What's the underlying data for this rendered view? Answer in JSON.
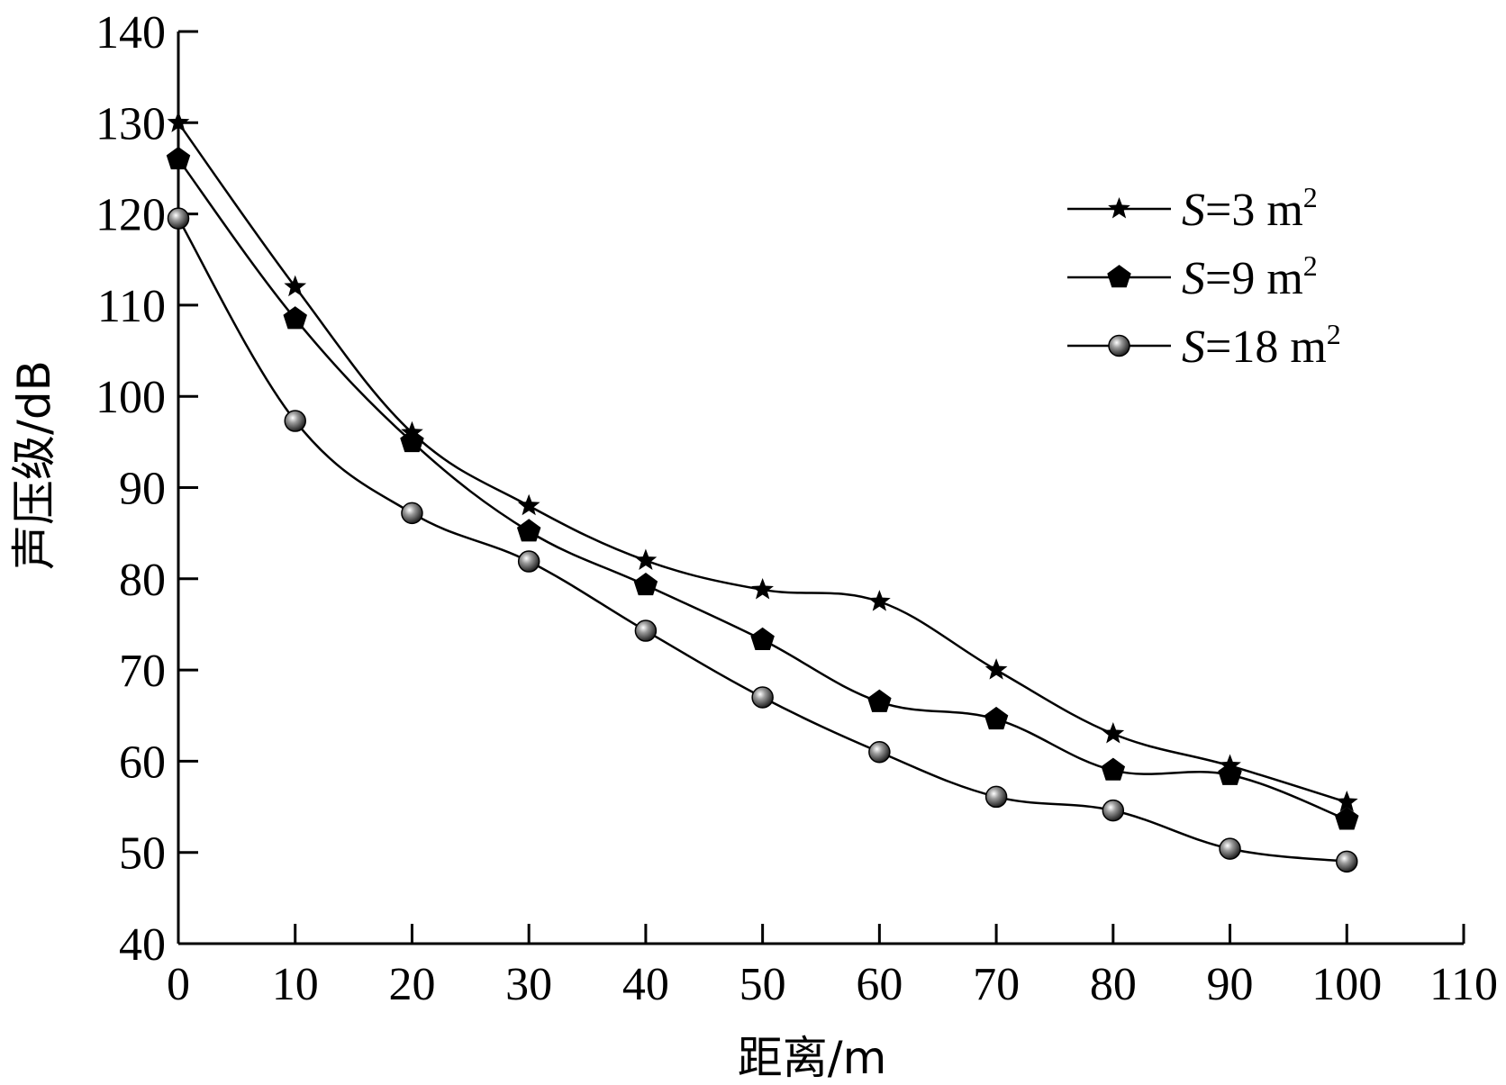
{
  "chart_data": {
    "type": "line",
    "xlabel": "距离/m",
    "ylabel": "声压级/dB",
    "xlim": [
      0,
      110
    ],
    "ylim": [
      40,
      140
    ],
    "xticks": [
      0,
      10,
      20,
      30,
      40,
      50,
      60,
      70,
      80,
      90,
      100,
      110
    ],
    "yticks": [
      40,
      50,
      60,
      70,
      80,
      90,
      100,
      110,
      120,
      130,
      140
    ],
    "grid": false,
    "legend_position": "top-right",
    "x": [
      0,
      10,
      20,
      30,
      40,
      50,
      60,
      70,
      80,
      90,
      100
    ],
    "series": [
      {
        "name": "S=3 m²",
        "name_italic": "S",
        "name_rest": "=3 m",
        "name_sup": "2",
        "marker": "star",
        "values": [
          130,
          112,
          96,
          88,
          82,
          78.8,
          77.5,
          70,
          63,
          59.5,
          55.5
        ]
      },
      {
        "name": "S=9 m²",
        "name_italic": "S",
        "name_rest": "=9 m",
        "name_sup": "2",
        "marker": "pentagon",
        "values": [
          126,
          108.5,
          95,
          85.2,
          79.3,
          73.3,
          66.5,
          64.6,
          59,
          58.5,
          53.6
        ]
      },
      {
        "name": "S=18 m²",
        "name_italic": "S",
        "name_rest": "=18 m",
        "name_sup": "2",
        "marker": "sphere",
        "values": [
          119.5,
          97.3,
          87.2,
          81.9,
          74.3,
          67,
          61,
          56.1,
          54.6,
          50.4,
          49
        ]
      }
    ]
  }
}
